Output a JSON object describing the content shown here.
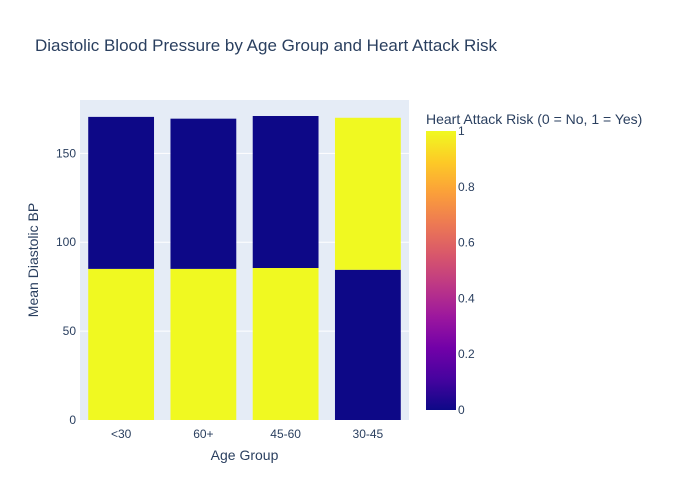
{
  "chart_data": {
    "type": "bar",
    "barmode": "stack",
    "title": "Diastolic Blood Pressure by Age Group and Heart Attack Risk",
    "xlabel": "Age Group",
    "ylabel": "Mean Diastolic BP",
    "categories": [
      "<30",
      "60+",
      "45-60",
      "30-45"
    ],
    "ylim": [
      0,
      180
    ],
    "yticks": [
      0,
      50,
      100,
      150
    ],
    "grid": true,
    "stack_segments": [
      {
        "values": [
          85,
          85,
          85.5,
          84.5
        ],
        "risk": [
          1,
          1,
          1,
          0
        ]
      },
      {
        "values": [
          85.5,
          84.5,
          85.5,
          85.5
        ],
        "risk": [
          0,
          0,
          0,
          1
        ]
      }
    ],
    "colorbar": {
      "title": "Heart Attack Risk (0 = No, 1 = Yes)",
      "range": [
        0,
        1
      ],
      "ticks": [
        "0",
        "0.2",
        "0.4",
        "0.6",
        "0.8",
        "1"
      ],
      "colorscale": [
        "#0d0887",
        "#46039f",
        "#7201a8",
        "#9c179e",
        "#bd3786",
        "#d8576b",
        "#ed7953",
        "#fb9f3a",
        "#fdca26",
        "#f0f921"
      ]
    },
    "colors": {
      "plot_bg": "#e5ecf6",
      "grid": "#ffffff",
      "text": "#2a3f5f"
    }
  }
}
